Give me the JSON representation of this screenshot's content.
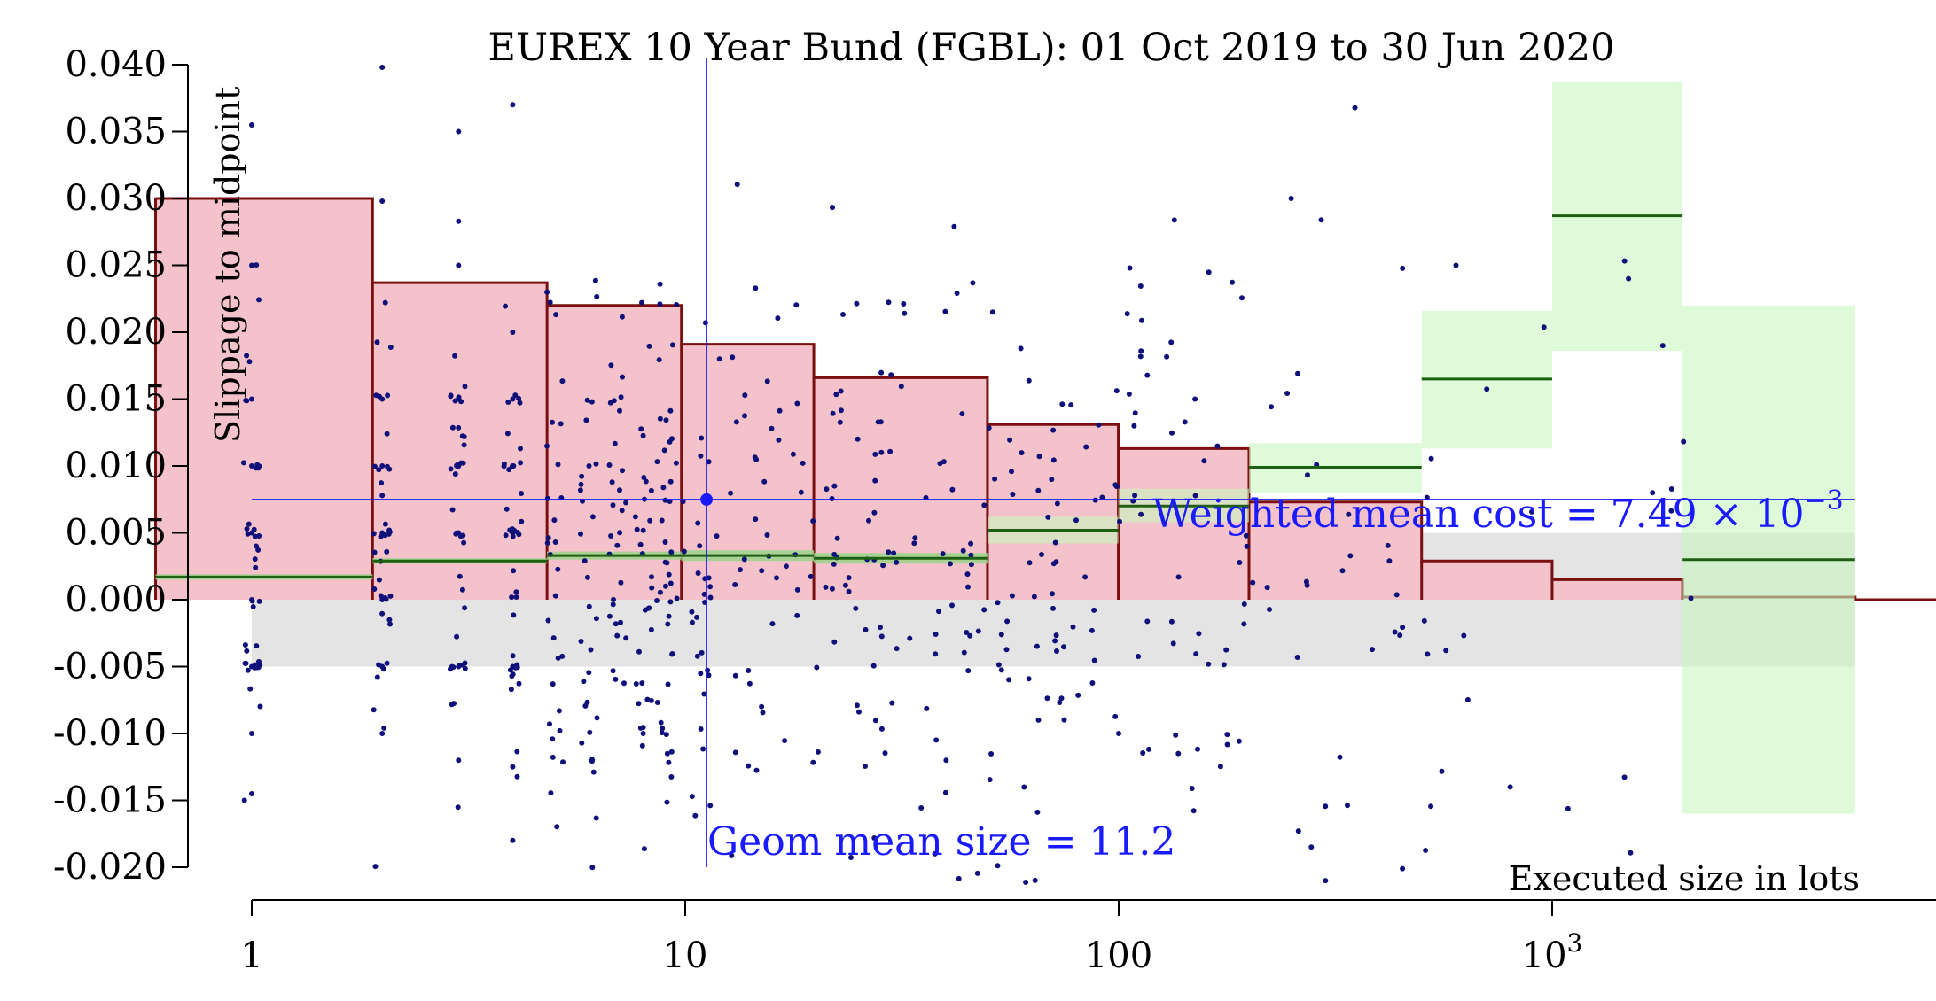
{
  "chart_data": {
    "type": "scatter",
    "title": "EUREX 10 Year Bund (FGBL): 01 Oct 2019 to 30 Jun 2020",
    "xlabel": "Executed size in lots",
    "ylabel": "Slippage to midpoint",
    "x_scale": "log",
    "xlim": [
      0.6,
      10000
    ],
    "ylim": [
      -0.02,
      0.04
    ],
    "x_ticks": [
      {
        "value": 1,
        "label": "1",
        "sup": ""
      },
      {
        "value": 10,
        "label": "10",
        "sup": ""
      },
      {
        "value": 100,
        "label": "100",
        "sup": ""
      },
      {
        "value": 1000,
        "label": "10",
        "sup": "3"
      }
    ],
    "y_ticks": [
      {
        "value": 0.04,
        "label": "0.040"
      },
      {
        "value": 0.035,
        "label": "0.035"
      },
      {
        "value": 0.03,
        "label": "0.030"
      },
      {
        "value": 0.025,
        "label": "0.025"
      },
      {
        "value": 0.02,
        "label": "0.020"
      },
      {
        "value": 0.015,
        "label": "0.015"
      },
      {
        "value": 0.01,
        "label": "0.010"
      },
      {
        "value": 0.005,
        "label": "0.005"
      },
      {
        "value": 0.0,
        "label": "0.000"
      },
      {
        "value": -0.005,
        "label": "-0.005"
      },
      {
        "value": -0.01,
        "label": "-0.010"
      },
      {
        "value": -0.015,
        "label": "-0.015"
      },
      {
        "value": -0.02,
        "label": "-0.020"
      }
    ],
    "grey_band": {
      "x_range": [
        1,
        5000
      ],
      "y_range": [
        -0.005,
        0.005
      ]
    },
    "bins": [
      {
        "x0": 0.6,
        "x1": 1.9,
        "bar": 0.03,
        "mean": 0.0017,
        "ci": [
          0.0015,
          0.0019
        ]
      },
      {
        "x0": 1.9,
        "x1": 4.8,
        "bar": 0.0237,
        "mean": 0.0029,
        "ci": [
          0.0027,
          0.0031
        ]
      },
      {
        "x0": 4.8,
        "x1": 9.8,
        "bar": 0.022,
        "mean": 0.0033,
        "ci": [
          0.003,
          0.0036
        ]
      },
      {
        "x0": 9.8,
        "x1": 19.8,
        "bar": 0.0191,
        "mean": 0.0033,
        "ci": [
          0.0029,
          0.0037
        ]
      },
      {
        "x0": 19.8,
        "x1": 49.8,
        "bar": 0.0166,
        "mean": 0.0031,
        "ci": [
          0.0027,
          0.0035
        ]
      },
      {
        "x0": 49.8,
        "x1": 99.8,
        "bar": 0.0131,
        "mean": 0.0052,
        "ci": [
          0.0042,
          0.0062
        ]
      },
      {
        "x0": 99.8,
        "x1": 199.8,
        "bar": 0.0113,
        "mean": 0.007,
        "ci": [
          0.0058,
          0.0083
        ]
      },
      {
        "x0": 199.8,
        "x1": 499.8,
        "bar": 0.0073,
        "mean": 0.0099,
        "ci": [
          0.008,
          0.0117
        ]
      },
      {
        "x0": 499.8,
        "x1": 999.8,
        "bar": 0.0029,
        "mean": 0.0165,
        "ci": [
          0.0113,
          0.0216
        ]
      },
      {
        "x0": 999.8,
        "x1": 1999.8,
        "bar": 0.0015,
        "mean": 0.0287,
        "ci": [
          0.0186,
          0.0387
        ]
      },
      {
        "x0": 1999.8,
        "x1": 5000,
        "bar": 0.0002,
        "mean": 0.003,
        "ci": [
          -0.016,
          0.022
        ]
      },
      {
        "x0": 5000,
        "x1": 10000,
        "bar": 0.0,
        "mean": null,
        "ci": null
      }
    ],
    "weighted_mean": {
      "value": 0.00749,
      "label": "Weighted mean cost = 7.49 × 10",
      "sup": "−3"
    },
    "geom_mean_size": {
      "value": 11.2,
      "label": "Geom mean size = 11.2"
    },
    "scatter_sample_points": [
      [
        1,
        0.005
      ],
      [
        1,
        -0.005
      ],
      [
        1,
        0.015
      ],
      [
        1,
        0.025
      ],
      [
        1,
        0.01
      ],
      [
        1,
        -0.01
      ],
      [
        1,
        0.0355
      ],
      [
        1,
        -0.0145
      ],
      [
        1,
        0.0
      ],
      [
        2,
        0.005
      ],
      [
        2,
        -0.005
      ],
      [
        2,
        0.01
      ],
      [
        2,
        0.015
      ],
      [
        2,
        0.0
      ],
      [
        2,
        -0.01
      ],
      [
        2,
        0.0398
      ],
      [
        2,
        0.0298
      ],
      [
        3,
        0.005
      ],
      [
        3,
        -0.005
      ],
      [
        3,
        0.01
      ],
      [
        3,
        0.015
      ],
      [
        3,
        0.025
      ],
      [
        3,
        0.0283
      ],
      [
        3,
        -0.012
      ],
      [
        3,
        0.035
      ],
      [
        4,
        0.005
      ],
      [
        4,
        -0.005
      ],
      [
        4,
        0.01
      ],
      [
        4,
        0.015
      ],
      [
        4,
        0.02
      ],
      [
        4,
        -0.0125
      ],
      [
        4,
        0.037
      ],
      [
        4,
        -0.018
      ],
      [
        6,
        0.01
      ],
      [
        8,
        -0.01
      ],
      [
        12,
        0.018
      ],
      [
        15,
        -0.008
      ],
      [
        25,
        0.012
      ],
      [
        40,
        -0.012
      ],
      [
        70,
        0.009
      ],
      [
        100,
        -0.01
      ],
      [
        150,
        0.015
      ],
      [
        250,
        0.03
      ],
      [
        300,
        -0.021
      ],
      [
        600,
        0.025
      ],
      [
        800,
        -0.014
      ],
      [
        1500,
        0.024
      ],
      [
        1800,
        0.019
      ]
    ]
  }
}
